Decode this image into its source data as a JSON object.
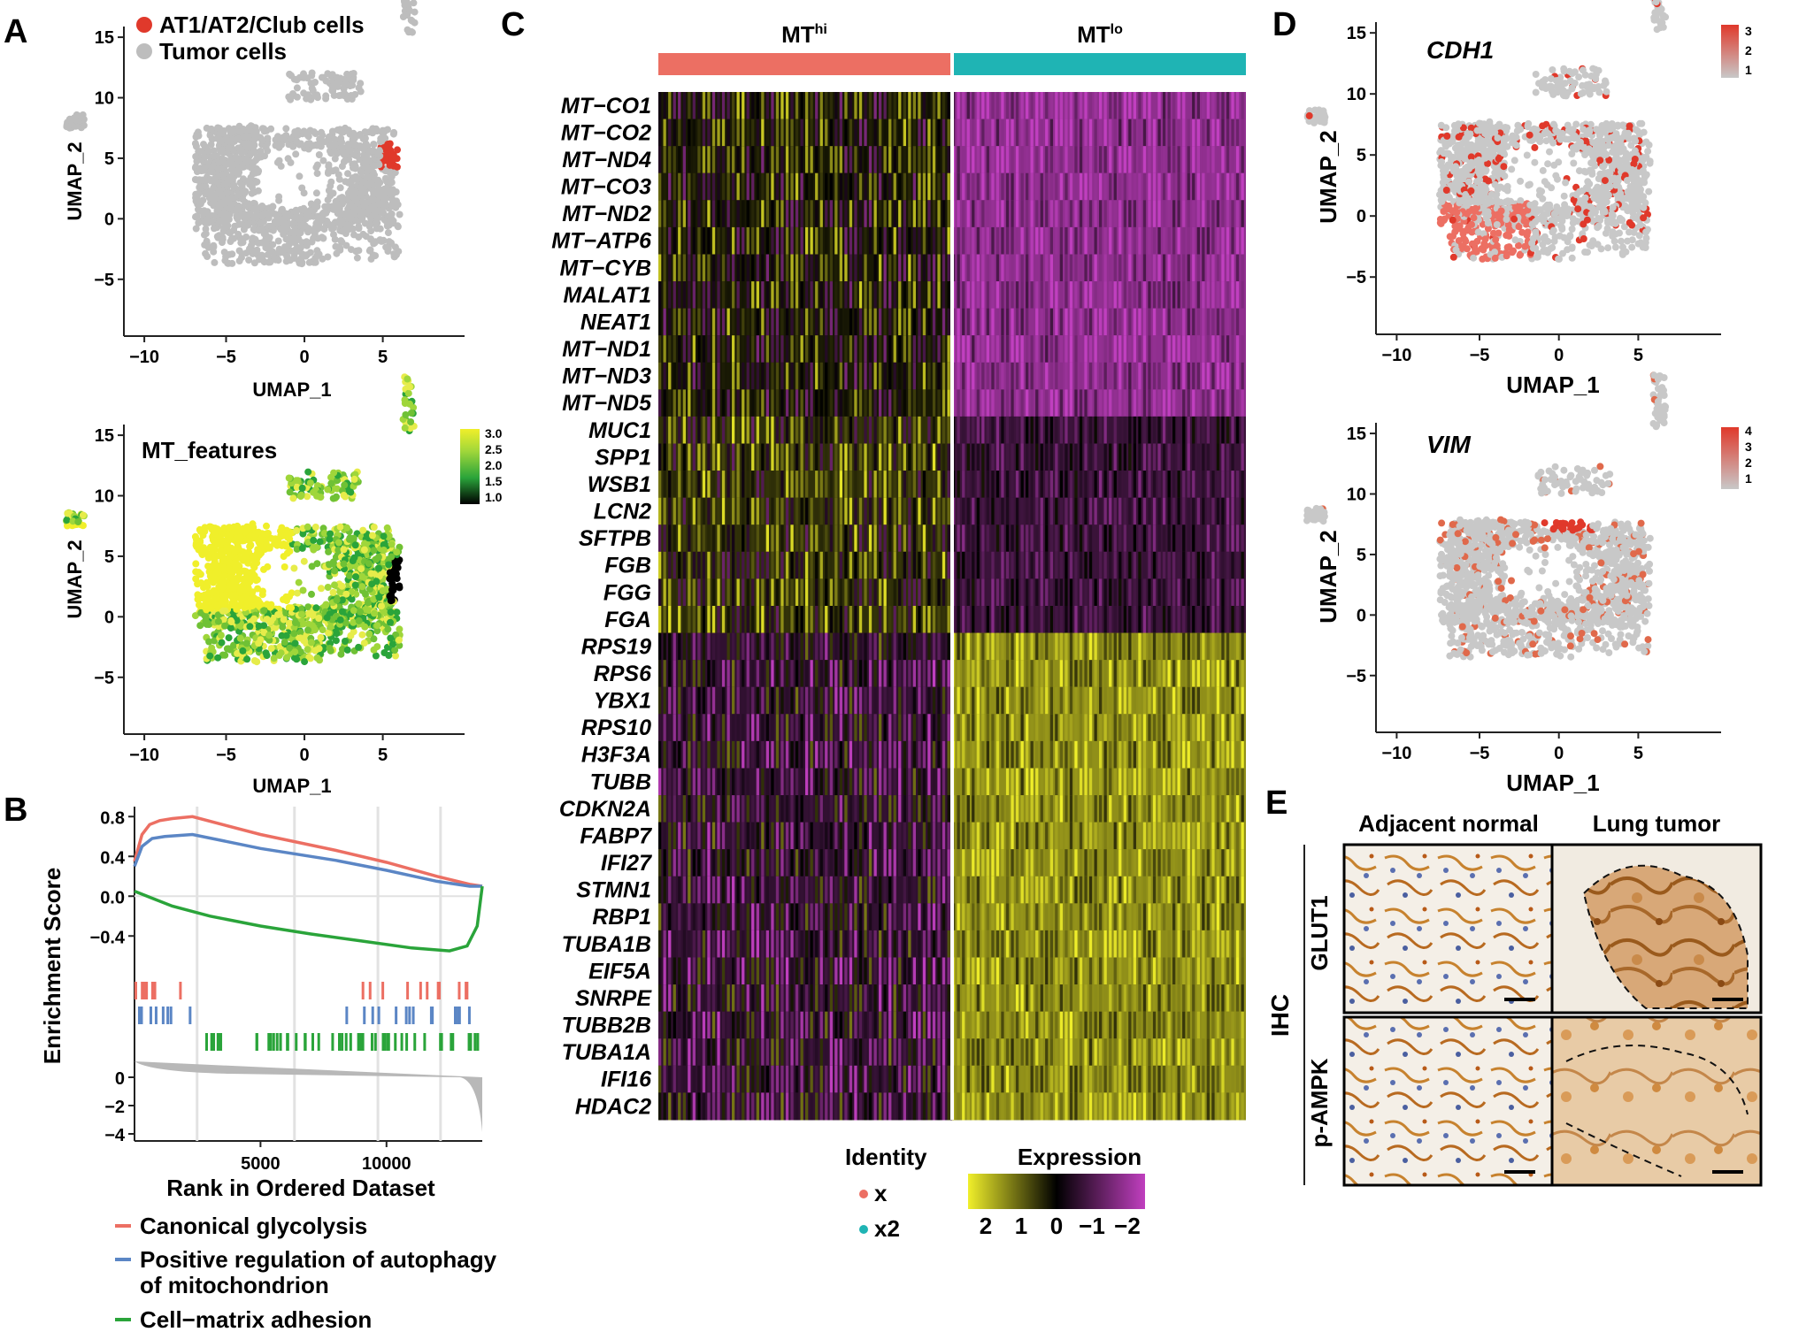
{
  "panels": {
    "A": "A",
    "B": "B",
    "C": "C",
    "D": "D",
    "E": "E"
  },
  "colors": {
    "red": "#e0392b",
    "grey": "#bdbdbd",
    "salmon": "#ec6f63",
    "teal": "#1fb4b4",
    "blue": "#5b86c5",
    "green": "#2aa43a",
    "yellow": "#f0ef2a",
    "magenta": "#c03fbf"
  },
  "panelA": {
    "top": {
      "legend": [
        "AT1/AT2/Club cells",
        "Tumor cells"
      ],
      "xlabel": "UMAP_1",
      "ylabel": "UMAP_2",
      "xticks": [
        "−10",
        "−5",
        "0",
        "5"
      ],
      "yticks": [
        "15",
        "10",
        "5",
        "0",
        "−5"
      ]
    },
    "bottom": {
      "title": "MT_features",
      "xlabel": "UMAP_1",
      "ylabel": "UMAP_2",
      "xticks": [
        "−10",
        "−5",
        "0",
        "5"
      ],
      "yticks": [
        "15",
        "10",
        "5",
        "0",
        "−5"
      ],
      "colorbar_ticks": [
        "3.0",
        "2.5",
        "2.0",
        "1.5",
        "1.0"
      ]
    }
  },
  "panelB": {
    "ylabel": "Enrichment Score",
    "xlabel": "Rank in Ordered Dataset",
    "es_yticks": [
      "0.8",
      "0.4",
      "0.0",
      "−0.4"
    ],
    "metric_yticks": [
      "0",
      "−2",
      "−4"
    ],
    "xticks": [
      "5000",
      "10000"
    ],
    "legend": [
      "Canonical glycolysis",
      "Positive regulation of autophagy",
      "of mitochondrion",
      "Cell−matrix adhesion"
    ]
  },
  "chart_data": {
    "type": "line",
    "xlabel": "Rank in Ordered Dataset",
    "ylabel": "Enrichment Score",
    "xlim": [
      0,
      13800
    ],
    "ylim": [
      -0.7,
      0.9
    ],
    "series": [
      {
        "name": "Canonical glycolysis",
        "x": [
          0,
          300,
          600,
          1000,
          1500,
          2300,
          5000,
          8000,
          10000,
          12000,
          13300,
          13800
        ],
        "y": [
          0.35,
          0.62,
          0.72,
          0.76,
          0.78,
          0.8,
          0.62,
          0.46,
          0.34,
          0.2,
          0.12,
          0.1
        ]
      },
      {
        "name": "Positive regulation of autophagy of mitochondrion",
        "x": [
          0,
          300,
          700,
          1200,
          2300,
          5000,
          8000,
          10000,
          12000,
          13300,
          13800
        ],
        "y": [
          0.3,
          0.5,
          0.58,
          0.6,
          0.62,
          0.48,
          0.36,
          0.26,
          0.15,
          0.1,
          0.1
        ]
      },
      {
        "name": "Cell−matrix adhesion",
        "x": [
          0,
          500,
          1500,
          3000,
          5000,
          7000,
          9000,
          11000,
          12500,
          13200,
          13600,
          13800
        ],
        "y": [
          0.05,
          0.0,
          -0.1,
          -0.2,
          -0.3,
          -0.38,
          -0.45,
          -0.52,
          -0.55,
          -0.5,
          -0.3,
          0.1
        ]
      }
    ]
  },
  "panelC": {
    "groups": [
      "MT",
      "hi",
      "MT",
      "lo"
    ],
    "genes": [
      "MT−CO1",
      "MT−CO2",
      "MT−ND4",
      "MT−CO3",
      "MT−ND2",
      "MT−ATP6",
      "MT−CYB",
      "MALAT1",
      "NEAT1",
      "MT−ND1",
      "MT−ND3",
      "MT−ND5",
      "MUC1",
      "SPP1",
      "WSB1",
      "LCN2",
      "SFTPB",
      "FGB",
      "FGG",
      "FGA",
      "RPS19",
      "RPS6",
      "YBX1",
      "RPS10",
      "H3F3A",
      "TUBB",
      "CDKN2A",
      "FABP7",
      "IFI27",
      "STMN1",
      "RBP1",
      "TUBA1B",
      "EIF5A",
      "SNRPE",
      "TUBB2B",
      "TUBA1A",
      "IFI16",
      "HDAC2"
    ],
    "identity_title": "Identity",
    "identity_items": [
      "x",
      "x2"
    ],
    "expression_title": "Expression",
    "expression_ticks": [
      "2",
      "1",
      "0",
      "−1",
      "−2"
    ]
  },
  "panelD": {
    "top": {
      "gene": "CDH1",
      "colorbar_ticks": [
        "3",
        "2",
        "1"
      ]
    },
    "bottom": {
      "gene": "VIM",
      "colorbar_ticks": [
        "4",
        "3",
        "2",
        "1"
      ]
    },
    "xlabel": "UMAP_1",
    "ylabel": "UMAP_2",
    "xticks": [
      "−10",
      "−5",
      "0",
      "5"
    ],
    "yticks": [
      "15",
      "10",
      "5",
      "0",
      "−5"
    ]
  },
  "panelE": {
    "columns": [
      "Adjacent normal",
      "Lung tumor"
    ],
    "rows": [
      "GLUT1",
      "p-AMPK"
    ],
    "side": "IHC"
  }
}
